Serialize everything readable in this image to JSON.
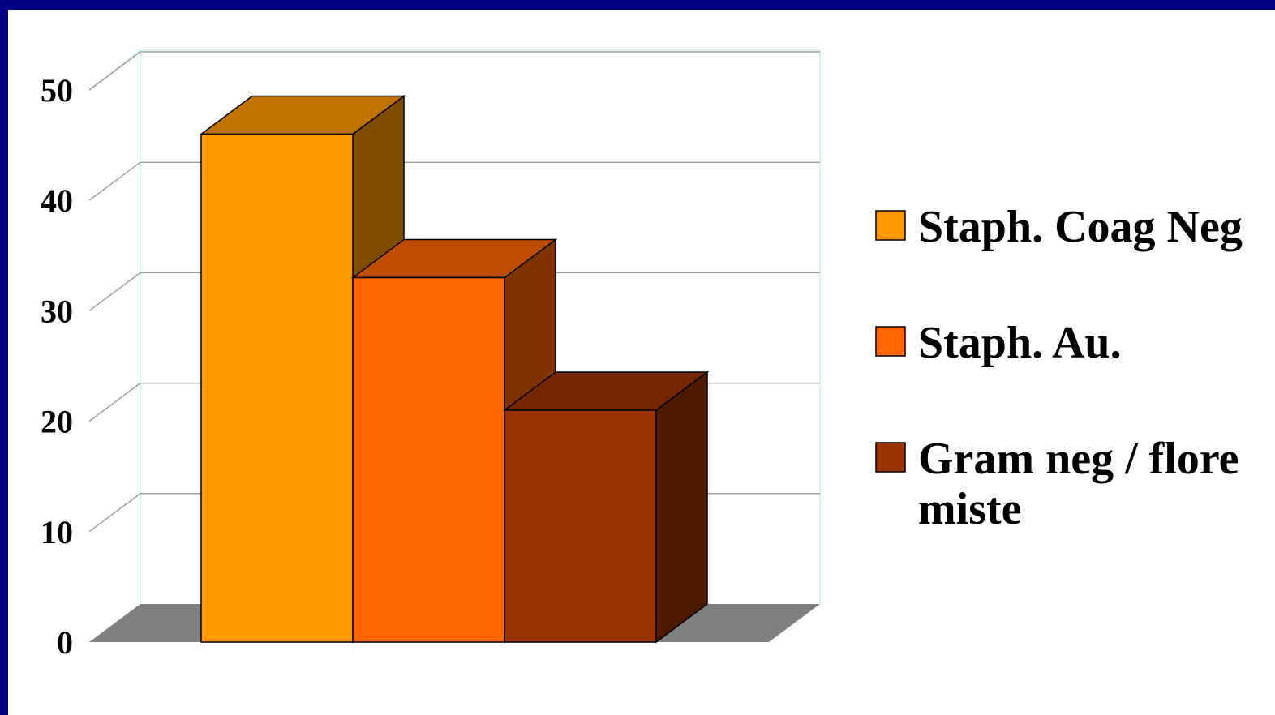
{
  "chart_data": {
    "type": "bar",
    "title": "",
    "xlabel": "",
    "ylabel": "",
    "ylim": [
      0,
      50
    ],
    "y_ticks": [
      "0",
      "10",
      "20",
      "30",
      "40",
      "50"
    ],
    "grid": true,
    "legend_position": "right",
    "series": [
      {
        "name": "Staph. Coag Neg",
        "legend_lines": [
          "Staph. Coag Neg"
        ],
        "value": 46,
        "color": "#ff9900"
      },
      {
        "name": "Staph. Au.",
        "legend_lines": [
          "Staph. Au."
        ],
        "value": 33,
        "color": "#ff6600"
      },
      {
        "name": "Gram neg / flore miste",
        "legend_lines": [
          "Gram neg / flore",
          "miste"
        ],
        "value": 21,
        "color": "#993300"
      }
    ]
  },
  "colors": {
    "background_border": "#000080",
    "plot_background": "#ffffff",
    "floor": "#808080",
    "gridline": "#a0a0a0",
    "wall_edge": "#c8f0f0"
  }
}
